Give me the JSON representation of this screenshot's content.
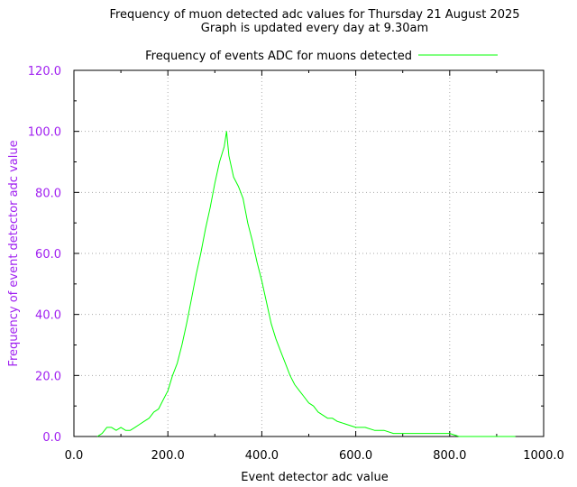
{
  "chart_data": {
    "type": "line",
    "title": "Frequency of muon detected adc values for Thursday 21 August 2025",
    "subtitle": "Graph is updated every day at 9.30am",
    "xlabel": "Event detector adc value",
    "ylabel": "Frequency of event detector adc value",
    "xlim": [
      0,
      1000
    ],
    "ylim": [
      0,
      120
    ],
    "x_ticks": [
      "0.0",
      "200.0",
      "400.0",
      "600.0",
      "800.0",
      "1000.0"
    ],
    "y_ticks": [
      "0.0",
      "20.0",
      "40.0",
      "60.0",
      "80.0",
      "100.0",
      "120.0"
    ],
    "grid": true,
    "legend_position": "top-center",
    "colors": {
      "series": "#00ff00",
      "axis_text": "#a020f0"
    },
    "series": [
      {
        "name": "Frequency of events ADC for muons detected",
        "x": [
          50,
          60,
          70,
          80,
          90,
          100,
          110,
          120,
          130,
          140,
          150,
          160,
          170,
          180,
          190,
          200,
          210,
          220,
          230,
          240,
          250,
          260,
          270,
          280,
          290,
          300,
          310,
          320,
          325,
          330,
          340,
          350,
          360,
          370,
          380,
          390,
          400,
          410,
          420,
          430,
          440,
          450,
          460,
          470,
          480,
          490,
          500,
          510,
          520,
          530,
          540,
          550,
          560,
          580,
          600,
          620,
          640,
          660,
          680,
          700,
          720,
          740,
          760,
          780,
          800,
          820,
          840,
          860,
          880,
          900,
          920,
          940
        ],
        "y": [
          0,
          1,
          3,
          3,
          2,
          3,
          2,
          2,
          3,
          4,
          5,
          6,
          8,
          9,
          12,
          15,
          20,
          24,
          30,
          37,
          45,
          53,
          60,
          68,
          75,
          83,
          90,
          95,
          100,
          92,
          85,
          82,
          78,
          70,
          64,
          57,
          51,
          44,
          37,
          32,
          28,
          24,
          20,
          17,
          15,
          13,
          11,
          10,
          8,
          7,
          6,
          6,
          5,
          4,
          3,
          3,
          2,
          2,
          1,
          1,
          1,
          1,
          1,
          1,
          1,
          0,
          0,
          0,
          0,
          0,
          0,
          0
        ]
      }
    ]
  }
}
